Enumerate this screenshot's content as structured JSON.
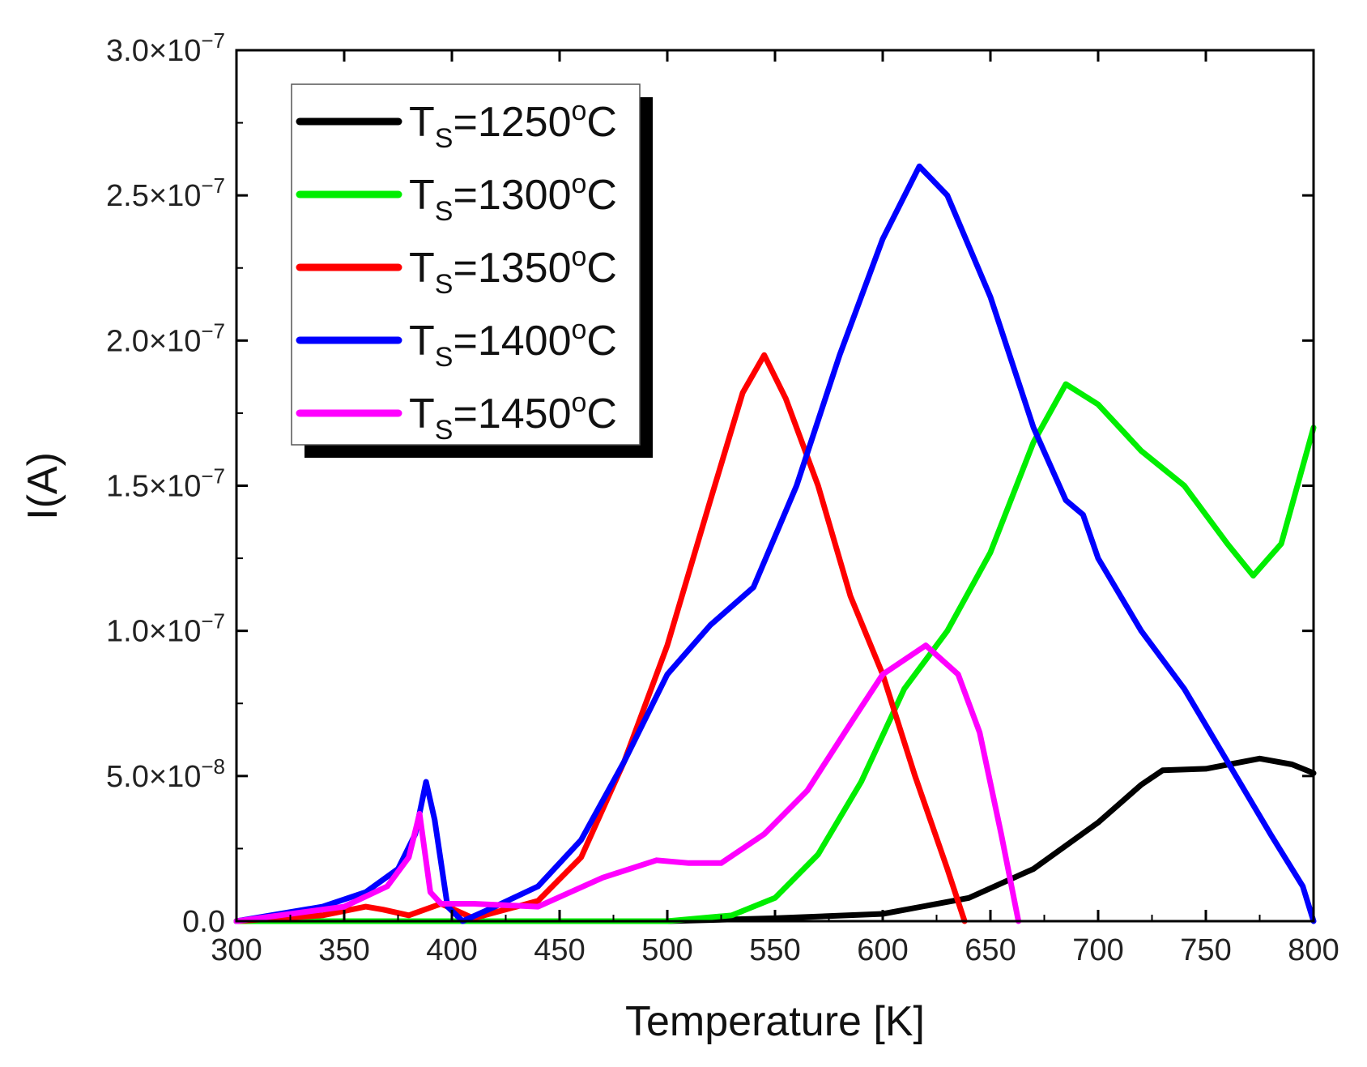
{
  "chart_data": {
    "type": "line",
    "title": "",
    "xlabel": "Temperature [K]",
    "ylabel": "I(A)",
    "xlim": [
      300,
      800
    ],
    "ylim": [
      0,
      3e-07
    ],
    "grid": false,
    "legend_position": "top-left",
    "x_ticks": [
      300,
      350,
      400,
      450,
      500,
      550,
      600,
      650,
      700,
      750,
      800
    ],
    "x_tick_labels": [
      "300",
      "350",
      "400",
      "450",
      "500",
      "550",
      "600",
      "650",
      "700",
      "750",
      "800"
    ],
    "y_ticks": [
      0,
      5e-08,
      1e-07,
      1.5e-07,
      2e-07,
      2.5e-07,
      3e-07
    ],
    "y_tick_labels": [
      {
        "mantissa": "0.0",
        "times": "",
        "base": "",
        "exp": ""
      },
      {
        "mantissa": "5.0",
        "times": "×",
        "base": "10",
        "exp": "−8"
      },
      {
        "mantissa": "1.0",
        "times": "×",
        "base": "10",
        "exp": "−7"
      },
      {
        "mantissa": "1.5",
        "times": "×",
        "base": "10",
        "exp": "−7"
      },
      {
        "mantissa": "2.0",
        "times": "×",
        "base": "10",
        "exp": "−7"
      },
      {
        "mantissa": "2.5",
        "times": "×",
        "base": "10",
        "exp": "−7"
      },
      {
        "mantissa": "3.0",
        "times": "×",
        "base": "10",
        "exp": "−7"
      }
    ],
    "series": [
      {
        "name": "TS=1250oC",
        "label_main": "T",
        "label_sub": "S",
        "label_eq": "=1250",
        "label_sup": "o",
        "label_unit": "C",
        "color": "#000000",
        "x": [
          300,
          400,
          500,
          550,
          600,
          640,
          670,
          700,
          720,
          730,
          750,
          775,
          790,
          800
        ],
        "y": [
          0,
          0,
          0,
          1e-09,
          2.5e-09,
          8e-09,
          1.8e-08,
          3.4e-08,
          4.7e-08,
          5.2e-08,
          5.25e-08,
          5.6e-08,
          5.4e-08,
          5.1e-08
        ]
      },
      {
        "name": "TS=1300oC",
        "label_main": "T",
        "label_sub": "S",
        "label_eq": "=1300",
        "label_sup": "o",
        "label_unit": "C",
        "color": "#00ee00",
        "x": [
          300,
          450,
          500,
          530,
          550,
          570,
          590,
          610,
          630,
          650,
          670,
          685,
          700,
          720,
          740,
          760,
          772,
          785,
          800
        ],
        "y": [
          0,
          0,
          0,
          2e-09,
          8e-09,
          2.3e-08,
          4.8e-08,
          8e-08,
          1e-07,
          1.27e-07,
          1.65e-07,
          1.85e-07,
          1.78e-07,
          1.62e-07,
          1.5e-07,
          1.3e-07,
          1.19e-07,
          1.3e-07,
          1.7e-07
        ]
      },
      {
        "name": "TS=1350oC",
        "label_main": "T",
        "label_sub": "S",
        "label_eq": "=1350",
        "label_sup": "o",
        "label_unit": "C",
        "color": "#ff0000",
        "x": [
          300,
          340,
          360,
          368,
          380,
          395,
          410,
          440,
          460,
          480,
          500,
          520,
          535,
          545,
          555,
          570,
          585,
          600,
          615,
          630,
          638
        ],
        "y": [
          0,
          2e-09,
          5e-09,
          4e-09,
          2e-09,
          6e-09,
          1e-09,
          7e-09,
          2.2e-08,
          5.5e-08,
          9.5e-08,
          1.45e-07,
          1.82e-07,
          1.95e-07,
          1.8e-07,
          1.5e-07,
          1.12e-07,
          8.5e-08,
          5e-08,
          1.8e-08,
          0
        ]
      },
      {
        "name": "TS=1400oC",
        "label_main": "T",
        "label_sub": "S",
        "label_eq": "=1400",
        "label_sup": "o",
        "label_unit": "C",
        "color": "#0000ff",
        "x": [
          300,
          340,
          360,
          375,
          383,
          388,
          392,
          398,
          405,
          420,
          440,
          460,
          480,
          500,
          520,
          540,
          560,
          580,
          600,
          617,
          630,
          650,
          670,
          685,
          693,
          700,
          720,
          740,
          760,
          780,
          795,
          800
        ],
        "y": [
          0,
          5e-09,
          1e-08,
          1.8e-08,
          3e-08,
          4.8e-08,
          3.5e-08,
          5e-09,
          0,
          5e-09,
          1.2e-08,
          2.8e-08,
          5.5e-08,
          8.5e-08,
          1.02e-07,
          1.15e-07,
          1.5e-07,
          1.95e-07,
          2.35e-07,
          2.6e-07,
          2.5e-07,
          2.15e-07,
          1.7e-07,
          1.45e-07,
          1.4e-07,
          1.25e-07,
          1e-07,
          8e-08,
          5.5e-08,
          3e-08,
          1.2e-08,
          0
        ]
      },
      {
        "name": "TS=1450oC",
        "label_main": "T",
        "label_sub": "S",
        "label_eq": "=1450",
        "label_sup": "o",
        "label_unit": "C",
        "color": "#ff00ff",
        "x": [
          300,
          350,
          370,
          380,
          385,
          390,
          395,
          410,
          440,
          470,
          495,
          510,
          525,
          545,
          565,
          585,
          600,
          620,
          635,
          645,
          655,
          663
        ],
        "y": [
          0,
          5e-09,
          1.2e-08,
          2.2e-08,
          3.7e-08,
          1e-08,
          6e-09,
          6e-09,
          5e-09,
          1.5e-08,
          2.1e-08,
          2e-08,
          2e-08,
          3e-08,
          4.5e-08,
          6.8e-08,
          8.5e-08,
          9.5e-08,
          8.5e-08,
          6.5e-08,
          3e-08,
          0
        ]
      }
    ]
  }
}
